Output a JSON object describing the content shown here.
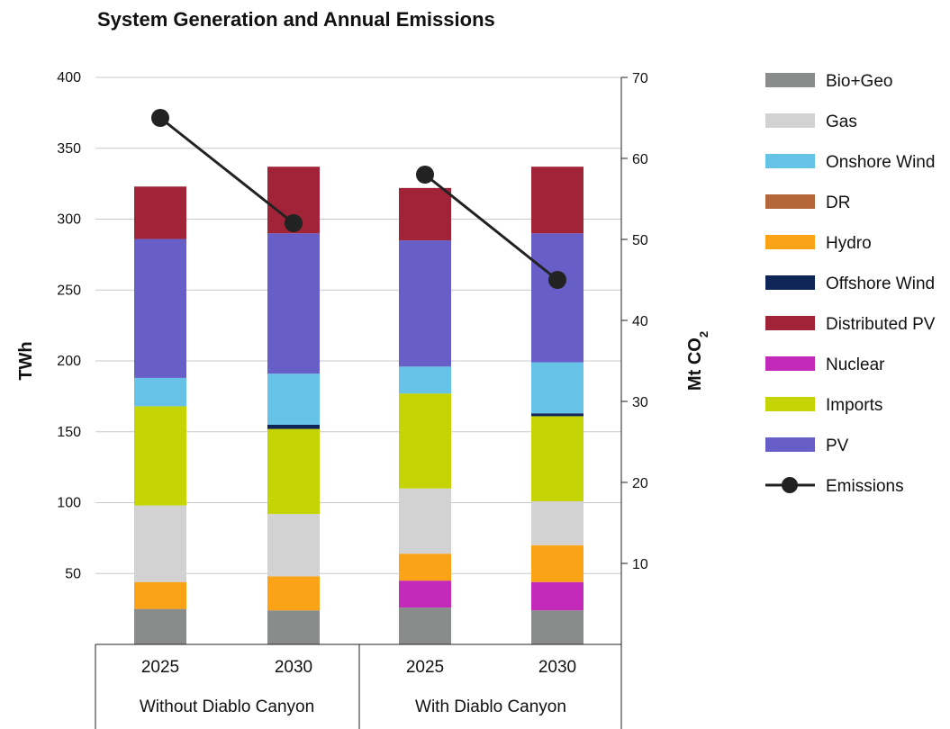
{
  "chart_data": {
    "type": "bar",
    "stacked": true,
    "title": "System Generation and Annual Emissions",
    "ylabel": "TWh",
    "y2label_main": "Mt CO",
    "y2label_sub": "2",
    "ylim": [
      0,
      400
    ],
    "y2lim": [
      0,
      70
    ],
    "yticks": [
      50,
      100,
      150,
      200,
      250,
      300,
      350,
      400
    ],
    "y2ticks": [
      10,
      20,
      30,
      40,
      50,
      60,
      70
    ],
    "grid": true,
    "legend_position": "right",
    "categories": [
      "2025",
      "2030",
      "2025",
      "2030"
    ],
    "groups": [
      {
        "label": "Without Diablo Canyon",
        "categories": [
          0,
          1
        ]
      },
      {
        "label": "With Diablo Canyon",
        "categories": [
          2,
          3
        ]
      }
    ],
    "series": [
      {
        "name": "Bio+Geo",
        "color": "#8a8c8c",
        "values": [
          25,
          24,
          26,
          24
        ]
      },
      {
        "name": "Nuclear",
        "color": "#c42ab9",
        "values": [
          0,
          0,
          19,
          20
        ]
      },
      {
        "name": "Hydro",
        "color": "#fba317",
        "values": [
          19,
          24,
          19,
          26
        ]
      },
      {
        "name": "Gas",
        "color": "#d3d2d2",
        "values": [
          54,
          44,
          46,
          31
        ]
      },
      {
        "name": "Imports",
        "color": "#c4d404",
        "values": [
          70,
          60,
          67,
          60
        ]
      },
      {
        "name": "Offshore Wind",
        "color": "#0f2457",
        "values": [
          0,
          3,
          0,
          2
        ]
      },
      {
        "name": "Onshore Wind",
        "color": "#66c3e7",
        "values": [
          20,
          36,
          19,
          36
        ]
      },
      {
        "name": "DR",
        "color": "#b5663a",
        "values": [
          0,
          0,
          0,
          0
        ]
      },
      {
        "name": "PV",
        "color": "#675ec7",
        "values": [
          98,
          99,
          89,
          91
        ]
      },
      {
        "name": "Distributed PV",
        "color": "#a02337",
        "values": [
          37,
          47,
          37,
          47
        ]
      }
    ],
    "legend": [
      {
        "name": "Bio+Geo",
        "color": "#8a8c8c",
        "kind": "bar"
      },
      {
        "name": "Gas",
        "color": "#d3d2d2",
        "kind": "bar"
      },
      {
        "name": "Onshore Wind",
        "color": "#66c3e7",
        "kind": "bar"
      },
      {
        "name": "DR",
        "color": "#b5663a",
        "kind": "bar"
      },
      {
        "name": "Hydro",
        "color": "#fba317",
        "kind": "bar"
      },
      {
        "name": "Offshore Wind",
        "color": "#0f2457",
        "kind": "bar"
      },
      {
        "name": "Distributed PV",
        "color": "#a02337",
        "kind": "bar"
      },
      {
        "name": "Nuclear",
        "color": "#c42ab9",
        "kind": "bar"
      },
      {
        "name": "Imports",
        "color": "#c4d404",
        "kind": "bar"
      },
      {
        "name": "PV",
        "color": "#675ec7",
        "kind": "bar"
      },
      {
        "name": "Emissions",
        "color": "#222222",
        "kind": "line"
      }
    ],
    "emissions": {
      "name": "Emissions",
      "axis": "right",
      "color": "#222222",
      "values": [
        65,
        52,
        58,
        45
      ],
      "segments": [
        [
          0,
          1
        ],
        [
          2,
          3
        ]
      ]
    }
  }
}
